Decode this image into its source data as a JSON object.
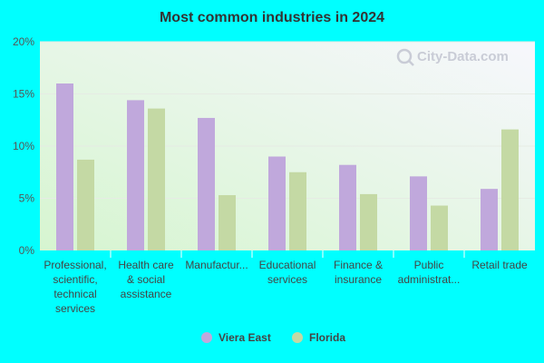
{
  "chart_data": {
    "type": "bar",
    "title": "Most common industries in 2024",
    "categories": [
      [
        "Professional,",
        "scientific,",
        "technical",
        "services"
      ],
      [
        "Health care",
        "& social",
        "assistance"
      ],
      [
        "Manufactur..."
      ],
      [
        "Educational",
        "services"
      ],
      [
        "Finance &",
        "insurance"
      ],
      [
        "Public",
        "administrat..."
      ],
      [
        "Retail trade"
      ]
    ],
    "series": [
      {
        "name": "Viera East",
        "color": "#c0a8dc",
        "values": [
          16.0,
          14.4,
          12.7,
          9.0,
          8.2,
          7.1,
          5.9
        ]
      },
      {
        "name": "Florida",
        "color": "#c4d9a4",
        "values": [
          8.7,
          13.6,
          5.3,
          7.5,
          5.4,
          4.3,
          11.6
        ]
      }
    ],
    "y_ticks": [
      "0%",
      "5%",
      "10%",
      "15%",
      "20%"
    ],
    "ylim": [
      0,
      20
    ],
    "grid": true,
    "legend_position": "bottom",
    "watermark": "City-Data.com"
  }
}
